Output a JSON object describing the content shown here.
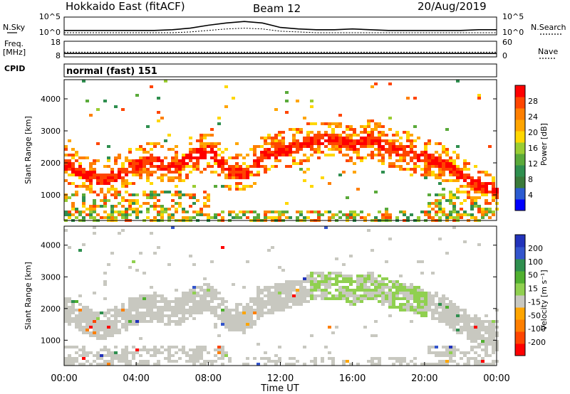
{
  "header": {
    "title": "Hokkaido East (fitACF)",
    "beam": "Beam 12",
    "date": "20/Aug/2019"
  },
  "left_labels": {
    "nsky": "N.Sky",
    "freq_line1": "Freq.",
    "freq_line2": "[MHz]",
    "cpid": "CPID"
  },
  "right_labels": {
    "nsearch": "N.Search",
    "nave": "Nave"
  },
  "cpid_value": "normal (fast) 151",
  "colors": {
    "power": [
      "#0000ff",
      "#2b5bd1",
      "#3a7a3a",
      "#2f8f4f",
      "#5aaa3a",
      "#9acd32",
      "#ffd700",
      "#ffa500",
      "#ff7f00",
      "#ff4500",
      "#ff0000"
    ],
    "velocity": [
      "#ff0000",
      "#ff4500",
      "#ff7f00",
      "#ffa500",
      "#c8c8c0",
      "#90d050",
      "#50b030",
      "#2f8f4f",
      "#3355cc",
      "#2233bb"
    ]
  },
  "chart_data": [
    {
      "type": "line",
      "name": "noise",
      "y_ticks_left": [
        "10^5",
        "10^0"
      ],
      "y_ticks_right": [
        "10^5",
        "10^0"
      ],
      "x": [
        0,
        1,
        2,
        3,
        4,
        5,
        6,
        7,
        8,
        9,
        10,
        11,
        12,
        13,
        14,
        15,
        16,
        17,
        18,
        19,
        20,
        21,
        22,
        23,
        24
      ],
      "series": [
        {
          "values": [
            0.2,
            0.2,
            0.2,
            0.2,
            0.2,
            0.2,
            0.25,
            0.35,
            0.55,
            0.7,
            0.8,
            0.7,
            0.4,
            0.3,
            0.25,
            0.25,
            0.3,
            0.25,
            0.2,
            0.2,
            0.2,
            0.2,
            0.2,
            0.25,
            0.25
          ]
        },
        {
          "values": [
            0.05,
            0.05,
            0.05,
            0.05,
            0.05,
            0.05,
            0.05,
            0.1,
            0.2,
            0.3,
            0.35,
            0.3,
            0.15,
            0.1,
            0.05,
            0.05,
            0.05,
            0.05,
            0.05,
            0.05,
            0.05,
            0.05,
            0.05,
            0.05,
            0.05
          ]
        }
      ],
      "ylim": [
        0,
        1
      ]
    },
    {
      "type": "line",
      "name": "frequency",
      "y_ticks_left": [
        "18",
        "8"
      ],
      "y_ticks_right": [
        "60",
        "0"
      ],
      "x": [
        0,
        24
      ],
      "series": [
        {
          "values": [
            11.0,
            11.0
          ]
        },
        {
          "values": [
            10.2,
            10.2
          ]
        }
      ],
      "ylim": [
        8,
        18
      ]
    },
    {
      "type": "heatmap",
      "name": "power",
      "xlabel": "",
      "ylabel": "Slant Range [km]",
      "ylim": [
        200,
        4600
      ],
      "xlim": [
        0,
        24
      ],
      "y_ticks": [
        1000,
        2000,
        3000,
        4000
      ],
      "colorbar_label": "Power [dB]",
      "colorbar_ticks": [
        4,
        8,
        12,
        16,
        20,
        24,
        28
      ],
      "colorbar_range": [
        0,
        32
      ],
      "echo_band": {
        "x": [
          0,
          1,
          2,
          3,
          4,
          5,
          6,
          7,
          8,
          9,
          10,
          11,
          12,
          13,
          14,
          15,
          16,
          17,
          18,
          19,
          20,
          21,
          22,
          23,
          24
        ],
        "center_km": [
          2000,
          1700,
          1500,
          1700,
          2000,
          2100,
          1850,
          2300,
          2400,
          1800,
          1700,
          2300,
          2400,
          2600,
          2800,
          2750,
          2600,
          2800,
          2500,
          2400,
          2200,
          2000,
          1600,
          1300,
          1200
        ]
      }
    },
    {
      "type": "heatmap",
      "name": "velocity",
      "xlabel": "Time UT",
      "ylabel": "Slant Range [km]",
      "ylim": [
        200,
        4600
      ],
      "xlim": [
        0,
        24
      ],
      "x_tick_labels": [
        "00:00",
        "04:00",
        "08:00",
        "12:00",
        "16:00",
        "20:00",
        "00:00"
      ],
      "y_ticks": [
        1000,
        2000,
        3000,
        4000
      ],
      "colorbar_label": "Velocity [m s⁻¹]",
      "colorbar_ticks": [
        "-200",
        "-100",
        "-50",
        "-15",
        "15",
        "50",
        "100",
        "200"
      ],
      "colorbar_range": [
        -250,
        250
      ]
    }
  ]
}
